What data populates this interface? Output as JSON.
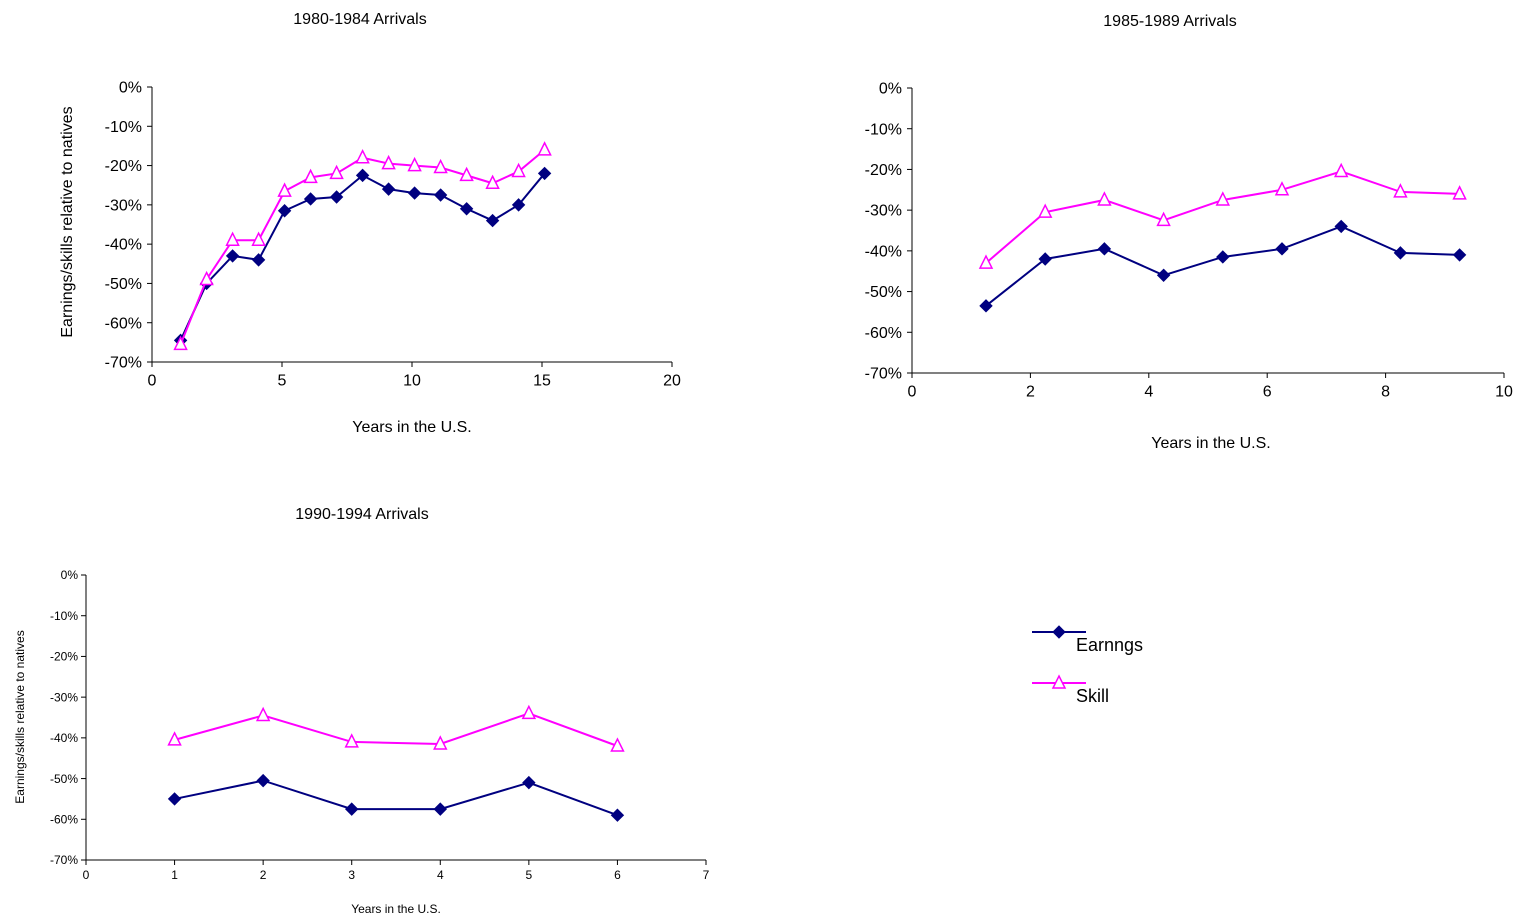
{
  "colors": {
    "earnings": "#000080",
    "skill": "#ff00ff",
    "axis": "#000000"
  },
  "legend": {
    "placement": "right",
    "items": [
      {
        "key": "earnings",
        "label": "Earnngs",
        "marker": "diamond"
      },
      {
        "key": "skill",
        "label": "Skill",
        "marker": "triangle-open"
      }
    ]
  },
  "chart_data": [
    {
      "type": "line",
      "title": "1980-1984 Arrivals",
      "xlabel": "Years in the U.S.",
      "ylabel": "Earnings/skills relative to natives",
      "xlim": [
        0,
        20
      ],
      "xticks": [
        "0",
        "5",
        "10",
        "15",
        "20"
      ],
      "ylim": [
        -70,
        0
      ],
      "yticks": [
        "0%",
        "-10%",
        "-20%",
        "-30%",
        "-40%",
        "-50%",
        "-60%",
        "-70%"
      ],
      "grid": false,
      "x": [
        1.1,
        2.1,
        3.1,
        4.1,
        5.1,
        6.1,
        7.1,
        8.1,
        9.1,
        10.1,
        11.1,
        12.1,
        13.1,
        14.1,
        15.1
      ],
      "series": [
        {
          "name": "Earnngs",
          "values": [
            -64.5,
            -50,
            -43,
            -44,
            -31.5,
            -28.5,
            -28,
            -22.5,
            -26,
            -27,
            -27.5,
            -31,
            -34,
            -30,
            -22
          ]
        },
        {
          "name": "Skill",
          "values": [
            -65.5,
            -49,
            -39,
            -39,
            -26.5,
            -23,
            -22,
            -18,
            -19.5,
            -20,
            -20.5,
            -22.5,
            -24.5,
            -21.5,
            -16
          ]
        }
      ]
    },
    {
      "type": "line",
      "title": "1985-1989 Arrivals",
      "xlabel": "Years in the U.S.",
      "ylabel": "",
      "xlim": [
        0,
        10
      ],
      "xticks": [
        "0",
        "2",
        "4",
        "6",
        "8",
        "10"
      ],
      "ylim": [
        -70,
        0
      ],
      "yticks": [
        "0%",
        "-10%",
        "-20%",
        "-30%",
        "-40%",
        "-50%",
        "-60%",
        "-70%"
      ],
      "grid": false,
      "x": [
        1.25,
        2.25,
        3.25,
        4.25,
        5.25,
        6.25,
        7.25,
        8.25,
        9.25
      ],
      "series": [
        {
          "name": "Earnngs",
          "values": [
            -53.5,
            -42,
            -39.5,
            -46,
            -41.5,
            -39.5,
            -34,
            -40.5,
            -41
          ]
        },
        {
          "name": "Skill",
          "values": [
            -43,
            -30.5,
            -27.5,
            -32.5,
            -27.5,
            -25,
            -20.5,
            -25.5,
            -26
          ]
        }
      ]
    },
    {
      "type": "line",
      "title": "1990-1994 Arrivals",
      "xlabel": "Years in the U.S.",
      "ylabel": "Earnings/skills relative to natives",
      "xlim": [
        0,
        7
      ],
      "xticks": [
        "0",
        "1",
        "2",
        "3",
        "4",
        "5",
        "6",
        "7"
      ],
      "ylim": [
        -70,
        0
      ],
      "yticks": [
        "0%",
        "-10%",
        "-20%",
        "-30%",
        "-40%",
        "-50%",
        "-60%",
        "-70%"
      ],
      "grid": false,
      "x": [
        1,
        2,
        3,
        4,
        5,
        6
      ],
      "series": [
        {
          "name": "Earnngs",
          "values": [
            -55,
            -50.5,
            -57.5,
            -57.5,
            -51,
            -59
          ]
        },
        {
          "name": "Skill",
          "values": [
            -40.5,
            -34.5,
            -41,
            -41.5,
            -34,
            -42
          ]
        }
      ]
    }
  ]
}
